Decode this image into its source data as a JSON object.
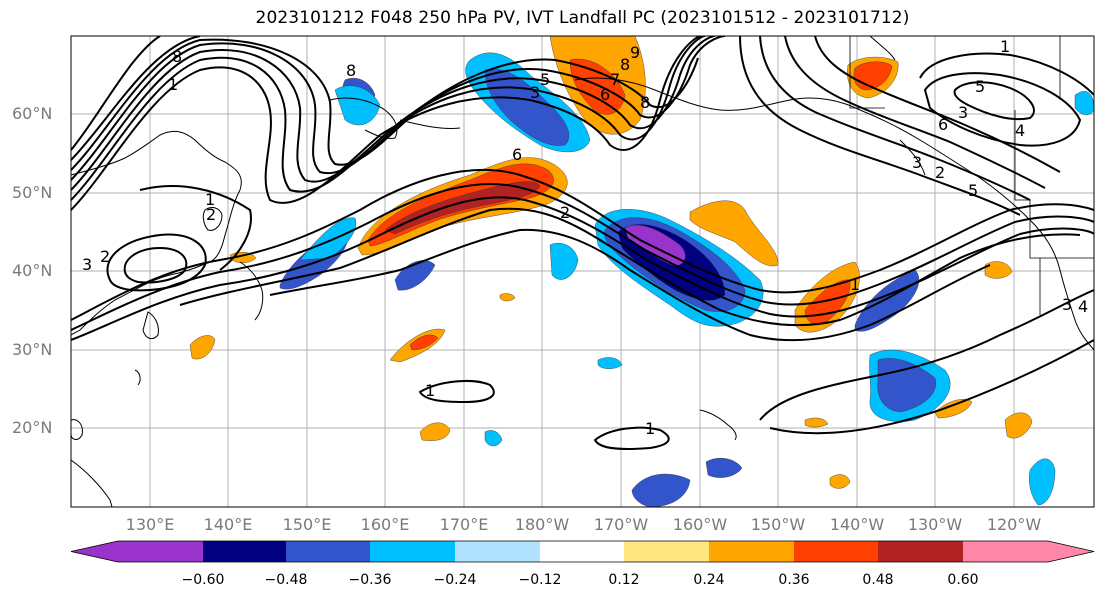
{
  "title": "2023101212 F048 250 hPa PV, IVT Landfall PC (2023101512 - 2023101712)",
  "lat_labels": [
    "60°N",
    "50°N",
    "40°N",
    "30°N",
    "20°N"
  ],
  "lon_labels": [
    "130°E",
    "140°E",
    "150°E",
    "160°E",
    "170°E",
    "180°W",
    "170°W",
    "160°W",
    "150°W",
    "140°W",
    "130°W",
    "120°W"
  ],
  "colorbar": {
    "colors": [
      "#9933cc",
      "#000080",
      "#3355cc",
      "#00bfff",
      "#b0e2ff",
      "#ffffff",
      "#ffe680",
      "#ffa500",
      "#ff4000",
      "#b22222",
      "#ff88aa"
    ],
    "ticks": [
      "−0.60",
      "−0.48",
      "−0.36",
      "−0.24",
      "−0.12",
      "0.12",
      "0.24",
      "0.36",
      "0.48",
      "0.60"
    ]
  },
  "contour_labels": [
    "8",
    "8",
    "1",
    "1",
    "2",
    "3",
    "2",
    "8",
    "6",
    "3",
    "5",
    "6",
    "7",
    "8",
    "9",
    "2",
    "1",
    "1",
    "1",
    "1",
    "2",
    "3",
    "4",
    "5",
    "6",
    "5",
    "3",
    "4",
    "3"
  ],
  "colors": {
    "axis_label": "#7a7a7a",
    "grid": "#b0b0b0"
  }
}
